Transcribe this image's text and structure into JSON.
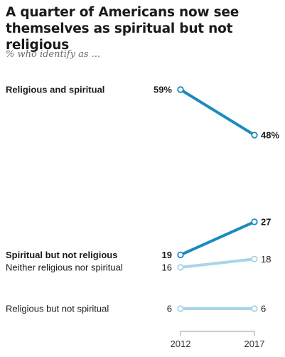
{
  "chart": {
    "title": "A quarter of Americans now see themselves as spiritual but not religious",
    "subtitle": "% who identify as ..."
  },
  "chart_data": {
    "type": "slope",
    "title": "A quarter of Americans now see themselves as spiritual but not religious",
    "subtitle": "% who identify as ...",
    "categories": [
      "2012",
      "2017"
    ],
    "series": [
      {
        "name": "Religious and spiritual",
        "values": [
          59,
          48
        ],
        "labels": [
          "59%",
          "48%"
        ],
        "color": "#1a8bbf",
        "bold": true
      },
      {
        "name": "Spiritual but not religious",
        "values": [
          19,
          27
        ],
        "labels": [
          "19",
          "27"
        ],
        "color": "#1a8bbf",
        "bold": true
      },
      {
        "name": "Neither religious nor spiritual",
        "values": [
          16,
          18
        ],
        "labels": [
          "16",
          "18"
        ],
        "color": "#a9d4ea",
        "bold": false
      },
      {
        "name": "Religious but not spiritual",
        "values": [
          6,
          6
        ],
        "labels": [
          "6",
          "6"
        ],
        "color": "#a9d4ea",
        "bold": false
      }
    ],
    "xlabel": "",
    "ylabel": ""
  }
}
